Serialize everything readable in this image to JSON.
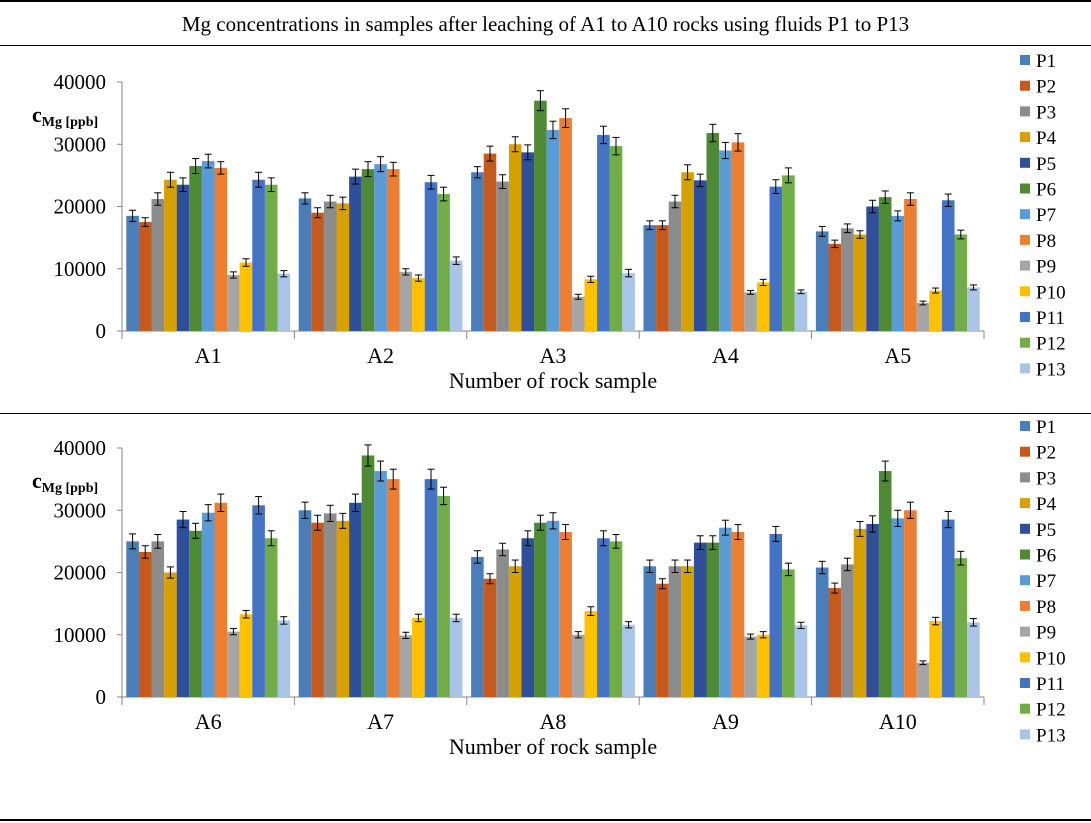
{
  "figure_title": "Mg concentrations in samples after leaching of A1 to A10 rocks using fluids P1 to P13",
  "colors": [
    "#4a7ebb",
    "#c55a1c",
    "#8c8c8c",
    "#d6a000",
    "#2f4f9a",
    "#4e8a33",
    "#5b9bd5",
    "#ed7d31",
    "#a5a5a5",
    "#ffc000",
    "#4472c4",
    "#70ad47",
    "#a9c4e6"
  ],
  "chart_data": [
    {
      "type": "bar",
      "title": "",
      "xlabel": "Number of rock sample",
      "ylabel_main": "c",
      "ylabel_sub": "Mg [ppb]",
      "ylim": [
        0,
        40000
      ],
      "yticks": [
        0,
        10000,
        20000,
        30000,
        40000
      ],
      "grid": false,
      "legend": "right",
      "categories": [
        "A1",
        "A2",
        "A3",
        "A4",
        "A5"
      ],
      "series": [
        {
          "name": "P1",
          "values": [
            18500,
            21300,
            25500,
            17000,
            16000
          ],
          "errors": [
            900,
            900,
            900,
            700,
            800
          ]
        },
        {
          "name": "P2",
          "values": [
            17500,
            19000,
            28500,
            17000,
            14000
          ],
          "errors": [
            700,
            800,
            1200,
            700,
            600
          ]
        },
        {
          "name": "P3",
          "values": [
            21200,
            20800,
            24000,
            20800,
            16500
          ],
          "errors": [
            1000,
            1000,
            1100,
            1000,
            700
          ]
        },
        {
          "name": "P4",
          "values": [
            24300,
            20500,
            30000,
            25500,
            15500
          ],
          "errors": [
            1200,
            1000,
            1200,
            1200,
            600
          ]
        },
        {
          "name": "P5",
          "values": [
            23500,
            24800,
            28700,
            24200,
            20000
          ],
          "errors": [
            1100,
            1200,
            1200,
            1000,
            1000
          ]
        },
        {
          "name": "P6",
          "values": [
            26500,
            26000,
            37000,
            31800,
            21500
          ],
          "errors": [
            1200,
            1200,
            1600,
            1400,
            1000
          ]
        },
        {
          "name": "P7",
          "values": [
            27300,
            26800,
            32300,
            29000,
            18500
          ],
          "errors": [
            1100,
            1200,
            1400,
            1300,
            800
          ]
        },
        {
          "name": "P8",
          "values": [
            26200,
            26000,
            34200,
            30300,
            21200
          ],
          "errors": [
            1000,
            1100,
            1500,
            1400,
            1000
          ]
        },
        {
          "name": "P9",
          "values": [
            9000,
            9500,
            5500,
            6200,
            4500
          ],
          "errors": [
            500,
            500,
            400,
            300,
            300
          ]
        },
        {
          "name": "P10",
          "values": [
            11000,
            8500,
            8300,
            7800,
            6500
          ],
          "errors": [
            600,
            500,
            500,
            500,
            400
          ]
        },
        {
          "name": "P11",
          "values": [
            24300,
            23900,
            31500,
            23200,
            21000
          ],
          "errors": [
            1200,
            1100,
            1400,
            1100,
            1000
          ]
        },
        {
          "name": "P12",
          "values": [
            23500,
            22000,
            29700,
            25000,
            15500
          ],
          "errors": [
            1100,
            1100,
            1400,
            1200,
            700
          ]
        },
        {
          "name": "P13",
          "values": [
            9200,
            11300,
            9300,
            6300,
            7000
          ],
          "errors": [
            500,
            600,
            600,
            300,
            400
          ]
        }
      ]
    },
    {
      "type": "bar",
      "title": "",
      "xlabel": "Number of rock sample",
      "ylabel_main": "c",
      "ylabel_sub": "Mg [ppb]",
      "ylim": [
        0,
        40000
      ],
      "yticks": [
        0,
        10000,
        20000,
        30000,
        40000
      ],
      "grid": false,
      "legend": "right",
      "categories": [
        "A6",
        "A7",
        "A8",
        "A9",
        "A10"
      ],
      "series": [
        {
          "name": "P1",
          "values": [
            25000,
            30000,
            22500,
            21000,
            20800
          ],
          "errors": [
            1200,
            1300,
            1000,
            1000,
            1000
          ]
        },
        {
          "name": "P2",
          "values": [
            23300,
            28000,
            19000,
            18200,
            17500
          ],
          "errors": [
            1000,
            1200,
            800,
            800,
            800
          ]
        },
        {
          "name": "P3",
          "values": [
            25000,
            29500,
            23700,
            21000,
            21300
          ],
          "errors": [
            1100,
            1300,
            1000,
            1000,
            1000
          ]
        },
        {
          "name": "P4",
          "values": [
            20000,
            28300,
            21000,
            21000,
            27000
          ],
          "errors": [
            900,
            1200,
            1000,
            1000,
            1200
          ]
        },
        {
          "name": "P5",
          "values": [
            28500,
            31200,
            25500,
            24800,
            27800
          ],
          "errors": [
            1300,
            1400,
            1200,
            1100,
            1300
          ]
        },
        {
          "name": "P6",
          "values": [
            26700,
            38800,
            28000,
            24800,
            36300
          ],
          "errors": [
            1200,
            1700,
            1200,
            1100,
            1600
          ]
        },
        {
          "name": "P7",
          "values": [
            29600,
            36300,
            28300,
            27200,
            28700
          ],
          "errors": [
            1300,
            1600,
            1300,
            1200,
            1300
          ]
        },
        {
          "name": "P8",
          "values": [
            31200,
            35000,
            26500,
            26500,
            30000
          ],
          "errors": [
            1400,
            1600,
            1200,
            1200,
            1300
          ]
        },
        {
          "name": "P9",
          "values": [
            10500,
            9900,
            10000,
            9700,
            5500
          ],
          "errors": [
            500,
            500,
            500,
            400,
            300
          ]
        },
        {
          "name": "P10",
          "values": [
            13300,
            12700,
            13800,
            10000,
            12200
          ],
          "errors": [
            600,
            600,
            700,
            500,
            600
          ]
        },
        {
          "name": "P11",
          "values": [
            30800,
            35000,
            25500,
            26200,
            28500
          ],
          "errors": [
            1400,
            1600,
            1200,
            1200,
            1300
          ]
        },
        {
          "name": "P12",
          "values": [
            25500,
            32300,
            25000,
            20500,
            22300
          ],
          "errors": [
            1200,
            1400,
            1100,
            1000,
            1100
          ]
        },
        {
          "name": "P13",
          "values": [
            12300,
            12700,
            11600,
            11500,
            12000
          ],
          "errors": [
            600,
            600,
            500,
            500,
            600
          ]
        }
      ]
    }
  ]
}
